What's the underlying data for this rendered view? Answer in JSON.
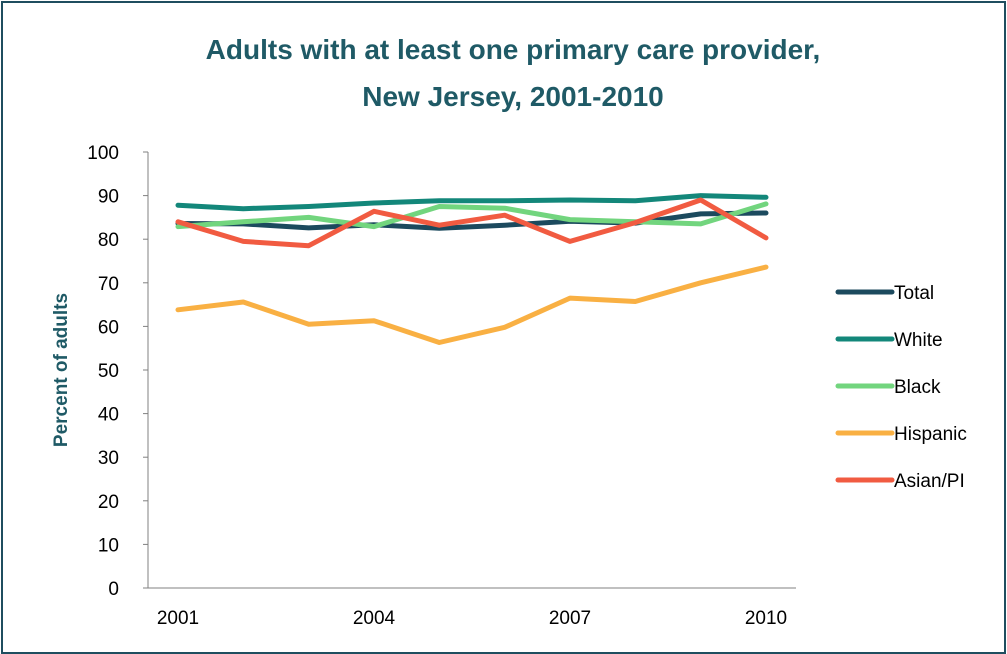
{
  "chart_data": {
    "type": "line",
    "title_lines": [
      "Adults with at least one primary care provider,",
      "New Jersey, 2001-2010"
    ],
    "ylabel": "Percent of adults",
    "xlabel": "",
    "x": [
      2001,
      2002,
      2003,
      2004,
      2005,
      2006,
      2007,
      2008,
      2009,
      2010
    ],
    "x_tick_labels": [
      "2001",
      "2004",
      "2007",
      "2010"
    ],
    "x_tick_values": [
      2001,
      2004,
      2007,
      2010
    ],
    "ylim": [
      0,
      100
    ],
    "y_ticks": [
      0,
      10,
      20,
      30,
      40,
      50,
      60,
      70,
      80,
      90,
      100
    ],
    "grid": false,
    "legend_position": "right",
    "series": [
      {
        "name": "Total",
        "color": "#1c4a5e",
        "values": [
          83.6,
          83.5,
          82.6,
          83.3,
          82.5,
          83.2,
          84.1,
          83.7,
          85.8,
          86.0
        ]
      },
      {
        "name": "White",
        "color": "#13877a",
        "values": [
          87.8,
          87.0,
          87.5,
          88.3,
          88.8,
          88.8,
          89.0,
          88.8,
          90.0,
          89.6
        ]
      },
      {
        "name": "Black",
        "color": "#72d57e",
        "values": [
          82.9,
          84.0,
          85.0,
          82.9,
          87.5,
          87.1,
          84.5,
          84.0,
          83.5,
          88.1
        ]
      },
      {
        "name": "Hispanic",
        "color": "#f9b043",
        "values": [
          63.8,
          65.6,
          60.5,
          61.3,
          56.3,
          59.8,
          66.5,
          65.7,
          70.0,
          73.6
        ]
      },
      {
        "name": "Asian/PI",
        "color": "#f15b41",
        "values": [
          84.0,
          79.5,
          78.5,
          86.4,
          83.2,
          85.5,
          79.5,
          83.8,
          89.0,
          80.3
        ]
      }
    ],
    "colors": {
      "title": "#1f5a66",
      "ylabel": "#1f5a66",
      "frame": "#1f4e5f",
      "axis": "#808080"
    }
  }
}
